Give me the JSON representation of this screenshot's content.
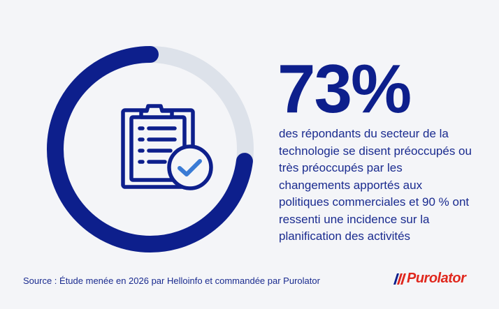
{
  "stat": {
    "value": "73%",
    "description": "des répondants du secteur de la technologie se disent préoccupés ou très préoccupés par les changements apportés aux politiques commerciales et 90 % ont ressenti une incidence sur la planification des activités",
    "ring_fill_fraction": 0.73
  },
  "icon": "clipboard-checklist-icon",
  "source": "Source : Étude menée en 2026 par Helloinfo et commandée par Purolator",
  "logo": {
    "text": "Purolator"
  },
  "colors": {
    "primary": "#0d1f8c",
    "ring_track": "#dde2ea",
    "accent_blue": "#3a7bd5",
    "brand_red": "#e0281e",
    "background": "#f4f5f8"
  }
}
